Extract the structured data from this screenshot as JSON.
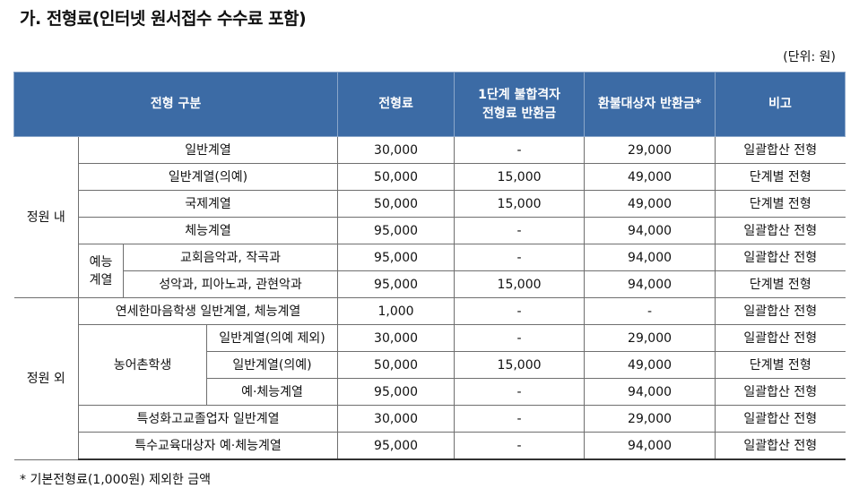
{
  "title": "가. 전형료(인터넷 원서접수 수수료 포함)",
  "unit_note": "(단위: 원)",
  "headers": {
    "category": "전형 구분",
    "fee": "전형료",
    "refund_line1": "1단계 불합격자",
    "refund_line2": "전형료 반환금",
    "refund_eligible": "환불대상자 반환금*",
    "remarks": "비고"
  },
  "groups": {
    "inside": "정원 내",
    "arts_line1": "예능",
    "arts_line2": "계열",
    "outside": "정원 외",
    "rural": "농어촌학생"
  },
  "rows": [
    {
      "label": "일반계열",
      "fee": "30,000",
      "stage1": "-",
      "refund": "29,000",
      "note": "일괄합산 전형"
    },
    {
      "label": "일반계열(의예)",
      "fee": "50,000",
      "stage1": "15,000",
      "refund": "49,000",
      "note": "단계별 전형"
    },
    {
      "label": "국제계열",
      "fee": "50,000",
      "stage1": "15,000",
      "refund": "49,000",
      "note": "단계별 전형"
    },
    {
      "label": "체능계열",
      "fee": "95,000",
      "stage1": "-",
      "refund": "94,000",
      "note": "일괄합산 전형"
    },
    {
      "label": "교회음악과, 작곡과",
      "fee": "95,000",
      "stage1": "-",
      "refund": "94,000",
      "note": "일괄합산 전형"
    },
    {
      "label": "성악과, 피아노과, 관현악과",
      "fee": "95,000",
      "stage1": "15,000",
      "refund": "94,000",
      "note": "단계별 전형"
    },
    {
      "label": "연세한마음학생 일반계열, 체능계열",
      "fee": "1,000",
      "stage1": "-",
      "refund": "-",
      "note": "일괄합산 전형"
    },
    {
      "label": "일반계열(의예 제외)",
      "fee": "30,000",
      "stage1": "-",
      "refund": "29,000",
      "note": "일괄합산 전형"
    },
    {
      "label": "일반계열(의예)",
      "fee": "50,000",
      "stage1": "15,000",
      "refund": "49,000",
      "note": "단계별 전형"
    },
    {
      "label": "예·체능계열",
      "fee": "95,000",
      "stage1": "-",
      "refund": "94,000",
      "note": "일괄합산 전형"
    },
    {
      "label": "특성화고교졸업자 일반계열",
      "fee": "30,000",
      "stage1": "-",
      "refund": "29,000",
      "note": "일괄합산 전형"
    },
    {
      "label": "특수교육대상자 예·체능계열",
      "fee": "95,000",
      "stage1": "-",
      "refund": "94,000",
      "note": "일괄합산 전형"
    }
  ],
  "footnote": "* 기본전형료(1,000원) 제외한 금액"
}
